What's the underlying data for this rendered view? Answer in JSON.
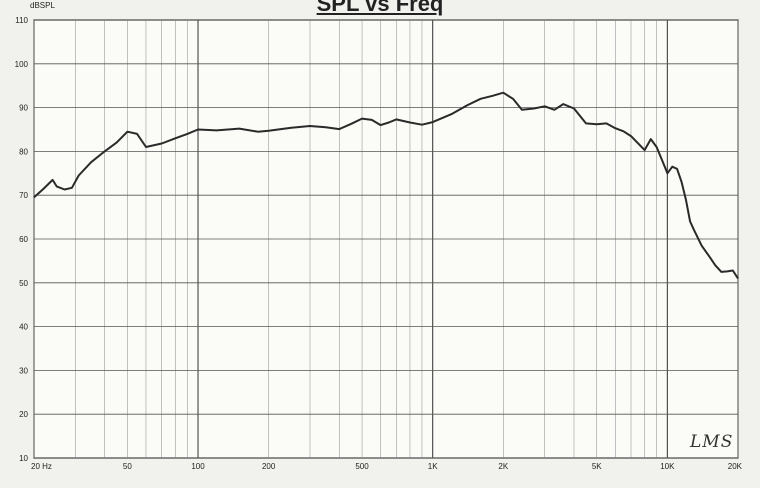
{
  "chart_data": {
    "type": "line",
    "title": "SPL vs Freq",
    "ylabel": "dBSPL",
    "xlabel": "",
    "x_scale": "log",
    "xlim": [
      20,
      20000
    ],
    "ylim": [
      10,
      110
    ],
    "yticks": [
      10,
      20,
      30,
      40,
      50,
      60,
      70,
      80,
      90,
      100,
      110
    ],
    "ytick_labels": [
      "10",
      "20",
      "30",
      "40",
      "50",
      "60",
      "70",
      "80",
      "90",
      "100",
      "110"
    ],
    "xticks": [
      20,
      50,
      100,
      200,
      500,
      1000,
      2000,
      5000,
      10000,
      20000
    ],
    "xtick_labels": [
      "20 Hz",
      "50",
      "100",
      "200",
      "500",
      "1K",
      "2K",
      "5K",
      "10K",
      "20K"
    ],
    "grid": true,
    "watermark": "LMS",
    "series": [
      {
        "color": "#2a2a2a",
        "x": [
          20,
          22,
          24,
          25,
          27,
          29,
          31,
          35,
          40,
          45,
          50,
          55,
          60,
          70,
          80,
          90,
          100,
          120,
          150,
          180,
          200,
          250,
          300,
          350,
          400,
          450,
          500,
          550,
          600,
          650,
          700,
          800,
          900,
          1000,
          1200,
          1400,
          1600,
          1800,
          2000,
          2200,
          2400,
          2700,
          3000,
          3300,
          3600,
          4000,
          4500,
          5000,
          5500,
          6000,
          6500,
          7000,
          8000,
          8500,
          9000,
          9500,
          10000,
          10500,
          11000,
          11500,
          12000,
          12500,
          13000,
          14000,
          15000,
          16000,
          17000,
          18000,
          19000,
          20000
        ],
        "values": [
          69.5,
          71.5,
          73.5,
          72,
          71.3,
          71.7,
          74.5,
          77.5,
          80,
          82,
          84.5,
          84,
          81,
          81.8,
          83,
          84,
          85,
          84.8,
          85.2,
          84.5,
          84.7,
          85.4,
          85.8,
          85.5,
          85.1,
          86.3,
          87.5,
          87.2,
          86,
          86.6,
          87.3,
          86.6,
          86.1,
          86.7,
          88.5,
          90.5,
          92,
          92.7,
          93.4,
          92,
          89.5,
          89.8,
          90.3,
          89.5,
          90.8,
          89.8,
          86.4,
          86.2,
          86.4,
          85.3,
          84.6,
          83.5,
          80.3,
          82.8,
          81,
          78,
          75,
          76.5,
          76,
          73,
          69,
          64,
          62,
          58.5,
          56.2,
          54,
          52.5,
          52.6,
          52.8,
          51
        ]
      }
    ]
  }
}
